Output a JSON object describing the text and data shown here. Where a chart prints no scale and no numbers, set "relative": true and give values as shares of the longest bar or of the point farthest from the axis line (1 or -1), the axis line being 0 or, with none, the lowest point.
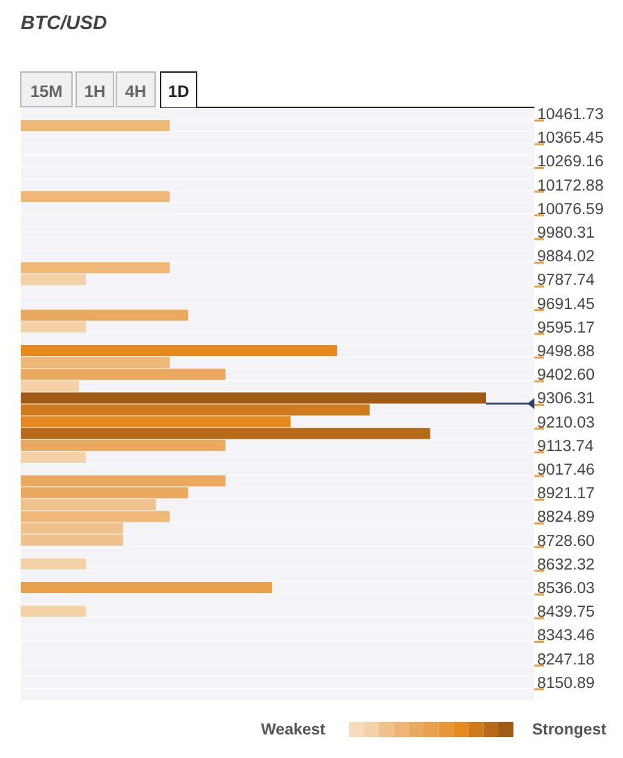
{
  "chart_data": {
    "type": "bar",
    "orientation": "horizontal",
    "relative": true,
    "title": "BTC/USD",
    "annotations": [
      "15M",
      "1H",
      "4H",
      "1D",
      "Weakest",
      "Strongest"
    ],
    "categories": [
      "10461.73",
      null,
      "10365.45",
      null,
      "10269.16",
      null,
      "10172.88",
      null,
      "10076.59",
      null,
      "9980.31",
      null,
      "9884.02",
      null,
      "9787.74",
      null,
      "9691.45",
      null,
      "9595.17",
      null,
      "9498.88",
      null,
      "9402.60",
      null,
      "9306.31",
      null,
      "9210.03",
      null,
      "9113.74",
      null,
      "9017.46",
      null,
      "8921.17",
      null,
      "8824.89",
      null,
      "8728.60",
      null,
      "8632.32",
      null,
      "8536.03",
      null,
      "8439.75",
      null,
      "8343.46",
      null,
      "8247.18",
      null,
      "8150.89",
      null
    ],
    "values": [
      null,
      0.32,
      null,
      null,
      null,
      null,
      null,
      0.32,
      null,
      null,
      null,
      null,
      null,
      0.32,
      0.14,
      null,
      null,
      0.36,
      0.14,
      null,
      0.68,
      0.32,
      0.44,
      0.125,
      1,
      0.75,
      0.58,
      0.88,
      0.44,
      0.14,
      null,
      0.44,
      0.36,
      0.29,
      0.32,
      0.22,
      0.22,
      null,
      0.14,
      null,
      0.54,
      null,
      0.14,
      null,
      null,
      null,
      null,
      null,
      null,
      null
    ],
    "colors": [
      null,
      "#efb877",
      null,
      null,
      null,
      null,
      null,
      "#efb877",
      null,
      null,
      null,
      null,
      null,
      "#efb877",
      "#f4d1a6",
      null,
      null,
      "#eba960",
      "#f4d1a6",
      null,
      "#e68a1f",
      "#efb877",
      "#eba960",
      "#f4d1a6",
      "#a05c14",
      "#d07a1e",
      "#e68a1f",
      "#b86a18",
      "#eba960",
      "#f4d1a6",
      null,
      "#eba960",
      "#eba960",
      "#f0c18c",
      "#efb877",
      "#f0c18c",
      "#f0c18c",
      null,
      "#f4d1a6",
      null,
      "#e9a04a",
      null,
      "#f4d1a6",
      null,
      null,
      null,
      null,
      null,
      null,
      null
    ]
  }
}
